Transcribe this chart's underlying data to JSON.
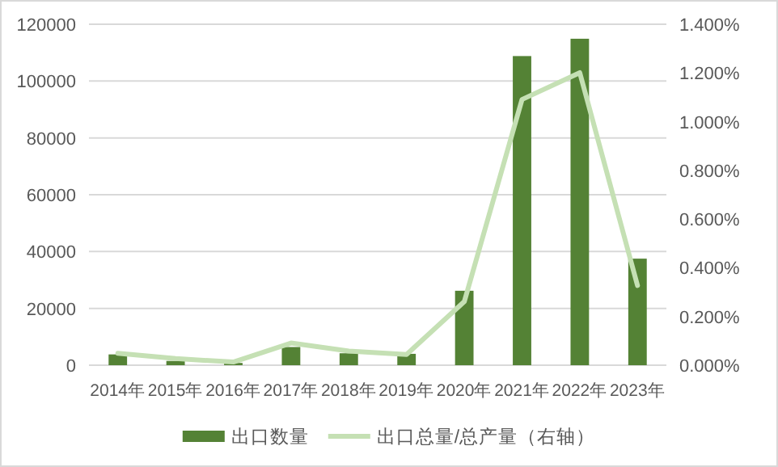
{
  "chart_data": {
    "type": "bar",
    "categories": [
      "2014年",
      "2015年",
      "2016年",
      "2017年",
      "2018年",
      "2019年",
      "2020年",
      "2021年",
      "2022年",
      "2023年"
    ],
    "series": [
      {
        "name": "出口数量",
        "color": "#548235",
        "values": [
          3800,
          1500,
          800,
          6400,
          4200,
          4000,
          26200,
          108800,
          114900,
          37500
        ]
      },
      {
        "name": "出口总量/总产量（右轴）",
        "type": "line",
        "axis": "y2",
        "color": "#c5e0b4",
        "values": [
          0.049,
          0.027,
          0.013,
          0.091,
          0.058,
          0.044,
          0.261,
          1.091,
          1.201,
          0.327
        ]
      }
    ],
    "ylim": [
      0,
      120000
    ],
    "yticks": [
      0,
      20000,
      40000,
      60000,
      80000,
      100000,
      120000
    ],
    "y2lim": [
      0,
      1.4
    ],
    "y2ticks": [
      {
        "value": 0,
        "label": "0.000%"
      },
      {
        "value": 0.2,
        "label": "0.200%"
      },
      {
        "value": 0.4,
        "label": "0.400%"
      },
      {
        "value": 0.6,
        "label": "0.600%"
      },
      {
        "value": 0.8,
        "label": "0.800%"
      },
      {
        "value": 1.0,
        "label": "1.000%"
      },
      {
        "value": 1.2,
        "label": "1.200%"
      },
      {
        "value": 1.4,
        "label": "1.400%"
      }
    ],
    "grid": "y",
    "legend": "bottom"
  }
}
